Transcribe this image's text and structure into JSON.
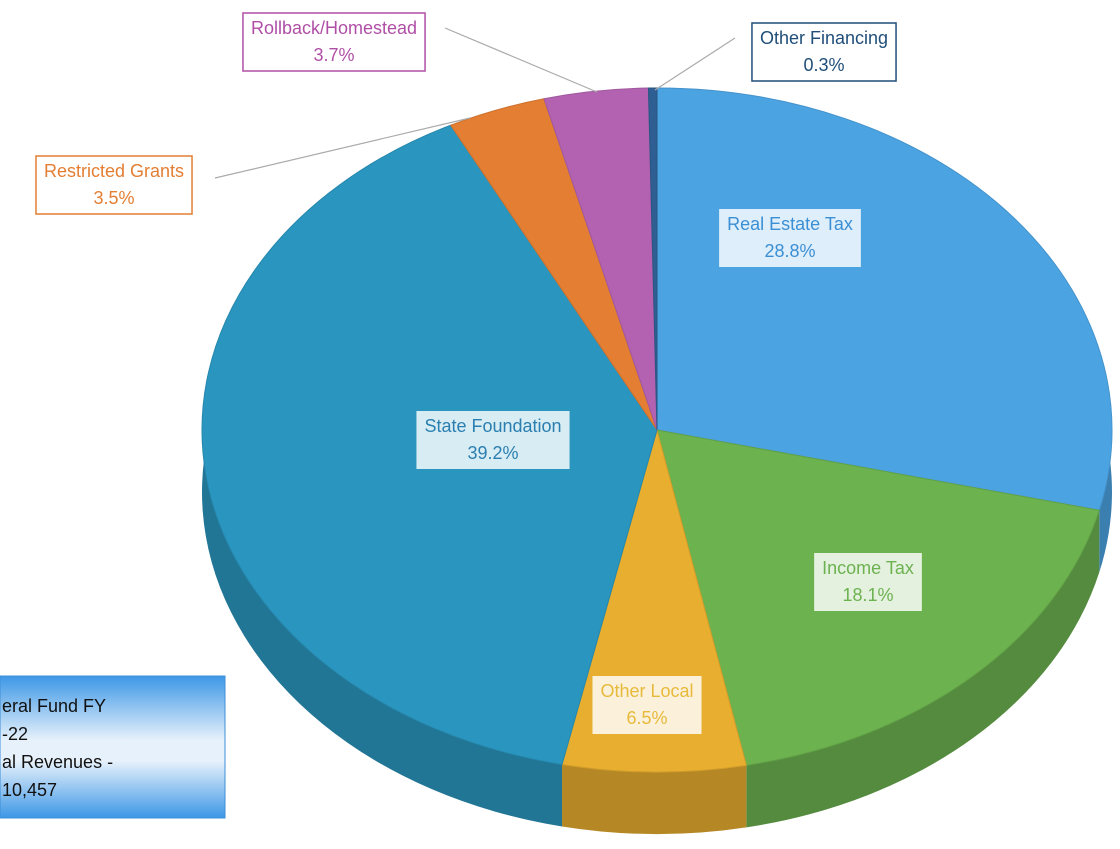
{
  "chart_data": {
    "type": "pie",
    "categories": [
      "Real Estate Tax",
      "Income Tax",
      "Other Local",
      "State Foundation",
      "Restricted Grants",
      "Rollback/Homestead",
      "Other Financing"
    ],
    "values": [
      28.8,
      18.1,
      6.5,
      39.2,
      3.5,
      3.7,
      0.3
    ],
    "value_labels": [
      "28.8%",
      "18.1%",
      "6.5%",
      "39.2%",
      "3.5%",
      "3.7%",
      "0.3%"
    ],
    "colors": [
      "#4ba3e2",
      "#6cb24f",
      "#e8ae2f",
      "#2a96bf",
      "#e37e33",
      "#b262b0",
      "#2f5f92"
    ],
    "label_colors": [
      "#3b8fd4",
      "#6cb24f",
      "#e8ba3c",
      "#2a7fb0",
      "#e37e33",
      "#b04fa6",
      "#1f4e79"
    ],
    "text_box": [
      "eral Fund FY",
      "-22",
      "al Revenues -",
      "10,457"
    ]
  }
}
